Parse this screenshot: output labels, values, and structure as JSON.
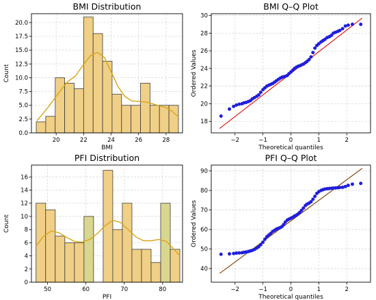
{
  "colors": {
    "bar_fill": "#f0cf86",
    "bar_fill_alt": "#d9d68f",
    "bar_edge": "#3a3a3a",
    "kde": "#d9a514",
    "point": "#1f1fdc",
    "bmi_ref_line": "#e01515",
    "pfi_ref_line": "#8b4513",
    "grid": "#d9d9d9"
  },
  "chart_data": [
    {
      "type": "bar",
      "subtype": "histogram",
      "title": "BMI Distribution",
      "xlabel": "BMI",
      "ylabel": "Count",
      "xlim": [
        18.2,
        29.2
      ],
      "ylim": [
        0,
        21.6
      ],
      "xticks": [
        20,
        22,
        24,
        26,
        28
      ],
      "yticks": [
        0.0,
        2.5,
        5.0,
        7.5,
        10.0,
        12.5,
        15.0,
        17.5,
        20.0
      ],
      "ytick_labels": [
        "0.0",
        "2.5",
        "5.0",
        "7.5",
        "10.0",
        "12.5",
        "15.0",
        "17.5",
        "20.0"
      ],
      "bin_edges": [
        18.55,
        19.24,
        19.93,
        20.62,
        21.31,
        22.0,
        22.69,
        23.38,
        24.07,
        24.76,
        25.45,
        26.14,
        26.83,
        27.52,
        28.21,
        28.9
      ],
      "counts": [
        2,
        3,
        10,
        9,
        8,
        21,
        18,
        13,
        7,
        5,
        5,
        9,
        5,
        5,
        5
      ],
      "kde": {
        "x": [
          18.6,
          19.4,
          20.2,
          20.8,
          21.4,
          22.0,
          22.5,
          23.0,
          23.5,
          24.0,
          24.5,
          25.0,
          25.5,
          26.0,
          26.5,
          27.0,
          27.5,
          28.0,
          28.5,
          28.9
        ],
        "y": [
          2.2,
          4.6,
          7.3,
          9.2,
          10.3,
          12.4,
          14.0,
          14.6,
          13.7,
          11.1,
          8.4,
          6.6,
          5.8,
          5.7,
          5.6,
          5.3,
          4.9,
          4.6,
          3.8,
          2.9
        ]
      },
      "grid": true
    },
    {
      "type": "scatter",
      "subtype": "qq-plot",
      "title": "BMI Q–Q Plot",
      "xlabel": "Theoretical quantiles",
      "ylabel": "Ordered Values",
      "xlim": [
        -2.85,
        2.85
      ],
      "ylim": [
        16.7,
        30.2
      ],
      "xticks": [
        -2,
        -1,
        0,
        1,
        2
      ],
      "yticks": [
        18,
        20,
        22,
        24,
        26,
        28,
        30
      ],
      "reference_line": {
        "x": [
          -2.55,
          2.55
        ],
        "y": [
          17.2,
          29.7
        ]
      },
      "points": {
        "x": [
          -2.5,
          -2.2,
          -2.05,
          -1.95,
          -1.85,
          -1.75,
          -1.68,
          -1.6,
          -1.52,
          -1.45,
          -1.38,
          -1.3,
          -1.22,
          -1.15,
          -1.08,
          -1.0,
          -0.93,
          -0.86,
          -0.79,
          -0.72,
          -0.65,
          -0.58,
          -0.52,
          -0.45,
          -0.38,
          -0.32,
          -0.26,
          -0.2,
          -0.13,
          -0.07,
          0.0,
          0.07,
          0.13,
          0.2,
          0.26,
          0.32,
          0.38,
          0.45,
          0.52,
          0.58,
          0.65,
          0.72,
          0.79,
          0.86,
          0.93,
          1.0,
          1.08,
          1.15,
          1.22,
          1.3,
          1.38,
          1.45,
          1.52,
          1.6,
          1.68,
          1.75,
          1.85,
          1.95,
          2.05,
          2.2,
          2.5
        ],
        "y": [
          18.6,
          19.4,
          19.7,
          19.85,
          19.95,
          20.0,
          20.1,
          20.15,
          20.25,
          20.35,
          20.55,
          20.7,
          20.85,
          21.0,
          21.3,
          21.6,
          21.8,
          22.0,
          22.1,
          22.2,
          22.3,
          22.45,
          22.6,
          22.75,
          22.9,
          23.0,
          23.05,
          23.1,
          23.2,
          23.4,
          23.6,
          23.8,
          24.0,
          24.15,
          24.25,
          24.3,
          24.4,
          24.5,
          24.65,
          24.8,
          25.0,
          25.3,
          25.8,
          26.3,
          26.6,
          26.8,
          27.0,
          27.15,
          27.3,
          27.5,
          27.6,
          27.75,
          28.0,
          28.1,
          28.2,
          28.3,
          28.5,
          28.8,
          28.9,
          29.0,
          29.0
        ]
      },
      "grid": true
    },
    {
      "type": "bar",
      "subtype": "histogram",
      "title": "PFI Distribution",
      "xlabel": "PFI",
      "ylabel": "Count",
      "xlim": [
        45.8,
        85.2
      ],
      "ylim": [
        0,
        17.8
      ],
      "xticks": [
        50,
        60,
        70,
        80
      ],
      "yticks": [
        0,
        2,
        4,
        6,
        8,
        10,
        12,
        14,
        16
      ],
      "ytick_labels": [
        "0",
        "2",
        "4",
        "6",
        "8",
        "10",
        "12",
        "14",
        "16"
      ],
      "bin_edges": [
        47.0,
        49.5,
        52.0,
        54.5,
        57.0,
        59.5,
        62.0,
        64.5,
        67.0,
        69.5,
        72.0,
        74.5,
        77.0,
        79.5,
        82.0,
        84.5
      ],
      "counts": [
        12,
        11,
        7,
        6,
        6,
        10,
        0,
        17,
        8,
        12,
        5,
        5,
        3,
        12,
        5
      ],
      "highlighted_bins": [
        5,
        13
      ],
      "kde": {
        "x": [
          47.0,
          49.0,
          51.0,
          53.0,
          55.0,
          57.0,
          59.0,
          61.0,
          63.0,
          65.0,
          67.0,
          69.0,
          71.0,
          73.0,
          75.0,
          77.0,
          79.0,
          81.0,
          83.0,
          84.5
        ],
        "y": [
          5.5,
          7.0,
          7.8,
          7.5,
          6.8,
          6.2,
          6.1,
          6.5,
          7.4,
          8.6,
          9.4,
          9.1,
          8.0,
          6.9,
          6.3,
          6.3,
          6.5,
          6.2,
          5.0,
          4.0
        ]
      },
      "grid": true
    },
    {
      "type": "scatter",
      "subtype": "qq-plot",
      "title": "PFI Q–Q Plot",
      "xlabel": "Theoretical quantiles",
      "ylabel": "Ordered Values",
      "xlim": [
        -2.85,
        2.85
      ],
      "ylim": [
        33,
        93
      ],
      "xticks": [
        -2,
        -1,
        0,
        1,
        2
      ],
      "yticks": [
        40,
        50,
        60,
        70,
        80,
        90
      ],
      "reference_line": {
        "x": [
          -2.55,
          2.55
        ],
        "y": [
          37.5,
          91.3
        ]
      },
      "points": {
        "x": [
          -2.5,
          -2.2,
          -2.05,
          -1.95,
          -1.85,
          -1.75,
          -1.68,
          -1.6,
          -1.52,
          -1.45,
          -1.38,
          -1.3,
          -1.22,
          -1.15,
          -1.08,
          -1.0,
          -0.93,
          -0.86,
          -0.79,
          -0.72,
          -0.65,
          -0.58,
          -0.52,
          -0.45,
          -0.38,
          -0.32,
          -0.26,
          -0.2,
          -0.13,
          -0.07,
          0.0,
          0.07,
          0.13,
          0.2,
          0.26,
          0.32,
          0.38,
          0.45,
          0.52,
          0.58,
          0.65,
          0.72,
          0.79,
          0.86,
          0.93,
          1.0,
          1.08,
          1.15,
          1.22,
          1.3,
          1.38,
          1.45,
          1.52,
          1.6,
          1.68,
          1.75,
          1.85,
          1.95,
          2.05,
          2.2,
          2.5
        ],
        "y": [
          47.3,
          47.5,
          47.7,
          47.9,
          48.0,
          48.1,
          48.3,
          48.5,
          48.7,
          49.0,
          49.3,
          49.8,
          50.5,
          51.2,
          52.2,
          53.5,
          55.0,
          56.3,
          57.2,
          58.0,
          59.0,
          59.6,
          60.2,
          60.6,
          61.0,
          61.5,
          62.5,
          63.8,
          64.8,
          65.3,
          65.8,
          66.3,
          66.9,
          67.4,
          68.0,
          68.8,
          69.8,
          71.0,
          72.3,
          73.0,
          73.5,
          74.2,
          75.5,
          77.0,
          78.5,
          79.4,
          80.0,
          80.4,
          80.7,
          80.9,
          81.0,
          81.1,
          81.2,
          81.3,
          81.4,
          81.5,
          81.6,
          82.0,
          82.6,
          83.2,
          83.6
        ]
      },
      "grid": true
    }
  ]
}
